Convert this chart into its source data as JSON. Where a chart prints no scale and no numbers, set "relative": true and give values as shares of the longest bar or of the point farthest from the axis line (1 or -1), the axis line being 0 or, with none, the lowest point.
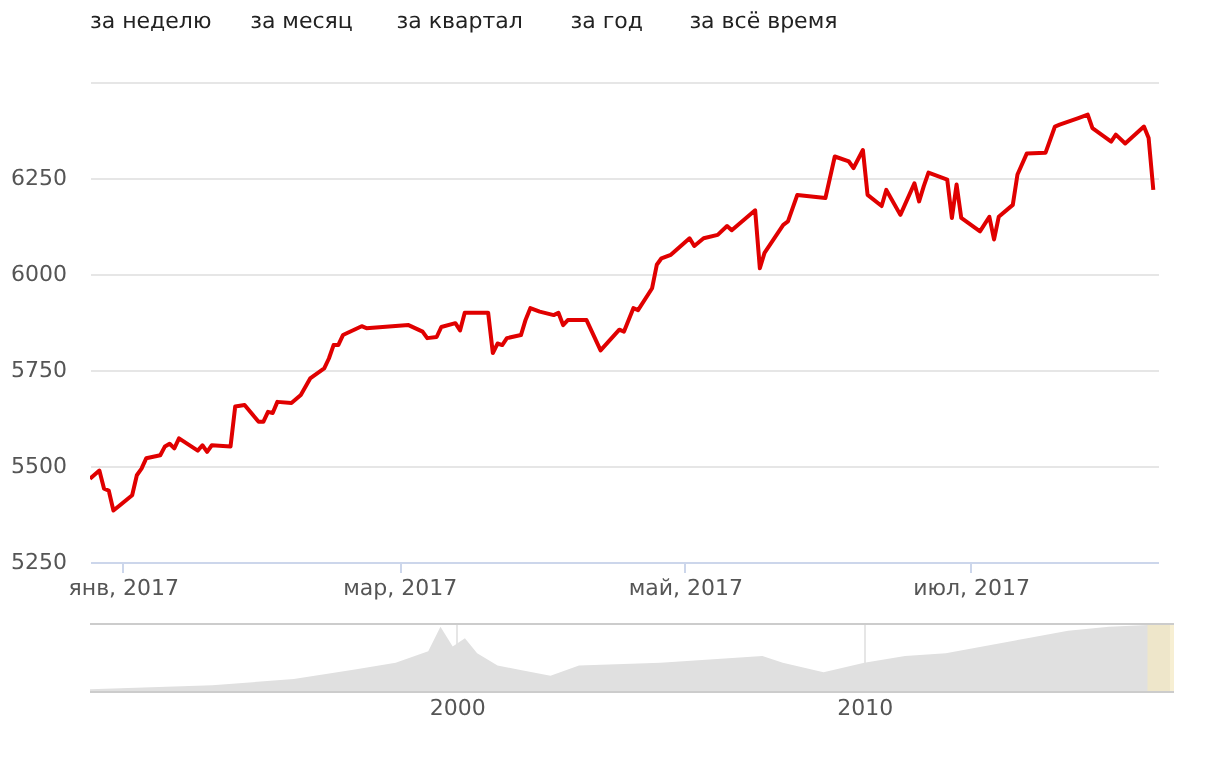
{
  "chart_data": [
    {
      "type": "line",
      "annotations": [
        "за неделю",
        "за месяц",
        "за квартал",
        "за год",
        "за всё время"
      ],
      "xlim": [
        "2016-12-25",
        "2017-08-10"
      ],
      "xticks": [
        {
          "value": "2017-01-01",
          "label": "янв, 2017"
        },
        {
          "value": "2017-03-01",
          "label": "мар, 2017"
        },
        {
          "value": "2017-05-01",
          "label": "май, 2017"
        },
        {
          "value": "2017-07-01",
          "label": "июл, 2017"
        }
      ],
      "ylim": [
        5250,
        6500
      ],
      "yticks": [
        5250,
        5500,
        5750,
        6000,
        6250,
        {
          "value": 6500,
          "label": null
        }
      ],
      "grid": "y",
      "marker": "none",
      "line_style": "solid",
      "series": [
        {
          "color": "#e00000",
          "x": [
            "2016-12-25",
            "2016-12-27",
            "2016-12-28",
            "2016-12-29",
            "2016-12-30",
            "2017-01-03",
            "2017-01-04",
            "2017-01-05",
            "2017-01-06",
            "2017-01-09",
            "2017-01-10",
            "2017-01-11",
            "2017-01-12",
            "2017-01-13",
            "2017-01-17",
            "2017-01-18",
            "2017-01-19",
            "2017-01-20",
            "2017-01-24",
            "2017-01-25",
            "2017-01-27",
            "2017-01-30",
            "2017-01-31",
            "2017-02-01",
            "2017-02-02",
            "2017-02-03",
            "2017-02-06",
            "2017-02-08",
            "2017-02-10",
            "2017-02-13",
            "2017-02-14",
            "2017-02-15",
            "2017-02-16",
            "2017-02-17",
            "2017-02-21",
            "2017-02-22",
            "2017-03-03",
            "2017-03-06",
            "2017-03-07",
            "2017-03-09",
            "2017-03-10",
            "2017-03-13",
            "2017-03-14",
            "2017-03-15",
            "2017-03-20",
            "2017-03-21",
            "2017-03-22",
            "2017-03-23",
            "2017-03-24",
            "2017-03-27",
            "2017-03-28",
            "2017-03-29",
            "2017-03-31",
            "2017-04-03",
            "2017-04-04",
            "2017-04-05",
            "2017-04-06",
            "2017-04-10",
            "2017-04-13",
            "2017-04-17",
            "2017-04-18",
            "2017-04-20",
            "2017-04-21",
            "2017-04-24",
            "2017-04-25",
            "2017-04-26",
            "2017-04-28",
            "2017-05-02",
            "2017-05-03",
            "2017-05-05",
            "2017-05-08",
            "2017-05-10",
            "2017-05-11",
            "2017-05-16",
            "2017-05-17",
            "2017-05-18",
            "2017-05-22",
            "2017-05-23",
            "2017-05-25",
            "2017-05-31",
            "2017-06-02",
            "2017-06-05",
            "2017-06-06",
            "2017-06-08",
            "2017-06-09",
            "2017-06-12",
            "2017-06-13",
            "2017-06-16",
            "2017-06-19",
            "2017-06-20",
            "2017-06-21",
            "2017-06-22",
            "2017-06-26",
            "2017-06-27",
            "2017-06-28",
            "2017-06-29",
            "2017-07-03",
            "2017-07-05",
            "2017-07-06",
            "2017-07-07",
            "2017-07-10",
            "2017-07-11",
            "2017-07-13",
            "2017-07-17",
            "2017-07-19",
            "2017-07-20",
            "2017-07-24",
            "2017-07-26",
            "2017-07-27",
            "2017-07-31",
            "2017-08-01",
            "2017-08-03",
            "2017-08-07",
            "2017-08-08",
            "2017-08-09"
          ],
          "values": [
            5467,
            5488,
            5441,
            5436,
            5384,
            5424,
            5476,
            5493,
            5520,
            5528,
            5551,
            5558,
            5546,
            5572,
            5540,
            5554,
            5537,
            5554,
            5551,
            5655,
            5659,
            5615,
            5615,
            5641,
            5638,
            5667,
            5664,
            5685,
            5728,
            5754,
            5780,
            5815,
            5815,
            5841,
            5864,
            5859,
            5867,
            5850,
            5833,
            5836,
            5862,
            5872,
            5853,
            5899,
            5899,
            5794,
            5819,
            5815,
            5833,
            5841,
            5881,
            5911,
            5902,
            5893,
            5899,
            5867,
            5880,
            5880,
            5801,
            5855,
            5850,
            5911,
            5906,
            5963,
            6024,
            6041,
            6050,
            6093,
            6073,
            6093,
            6102,
            6125,
            6114,
            6166,
            6015,
            6055,
            6128,
            6137,
            6206,
            6198,
            6306,
            6293,
            6276,
            6323,
            6206,
            6177,
            6219,
            6154,
            6236,
            6189,
            6229,
            6264,
            6246,
            6146,
            6233,
            6146,
            6111,
            6149,
            6090,
            6149,
            6180,
            6259,
            6314,
            6316,
            6384,
            6389,
            6406,
            6415,
            6380,
            6345,
            6363,
            6340,
            6384,
            6354,
            6219
          ]
        }
      ]
    },
    {
      "type": "area",
      "relative": true,
      "xlim": [
        1991,
        2017.6
      ],
      "xticks": [
        2000,
        2010
      ],
      "grid": "x",
      "bands": [
        {
          "axis": "x",
          "from": 2016.95,
          "to": 2017.6,
          "color": "#f3e8c0"
        }
      ],
      "series": [
        {
          "color": "#e0e0e0",
          "x": [
            1991,
            1994,
            1996,
            1997.5,
            1998.5,
            1999.3,
            1999.6,
            1999.9,
            2000.2,
            2000.5,
            2001,
            2001.5,
            2002.3,
            2003,
            2005,
            2007.5,
            2008,
            2009,
            2010,
            2011,
            2012,
            2014,
            2015,
            2016,
            2017.5
          ],
          "values": [
            0.04,
            0.1,
            0.19,
            0.33,
            0.43,
            0.6,
            0.96,
            0.67,
            0.79,
            0.57,
            0.39,
            0.33,
            0.24,
            0.39,
            0.43,
            0.53,
            0.43,
            0.29,
            0.43,
            0.53,
            0.57,
            0.79,
            0.9,
            0.96,
            1
          ]
        }
      ]
    }
  ]
}
